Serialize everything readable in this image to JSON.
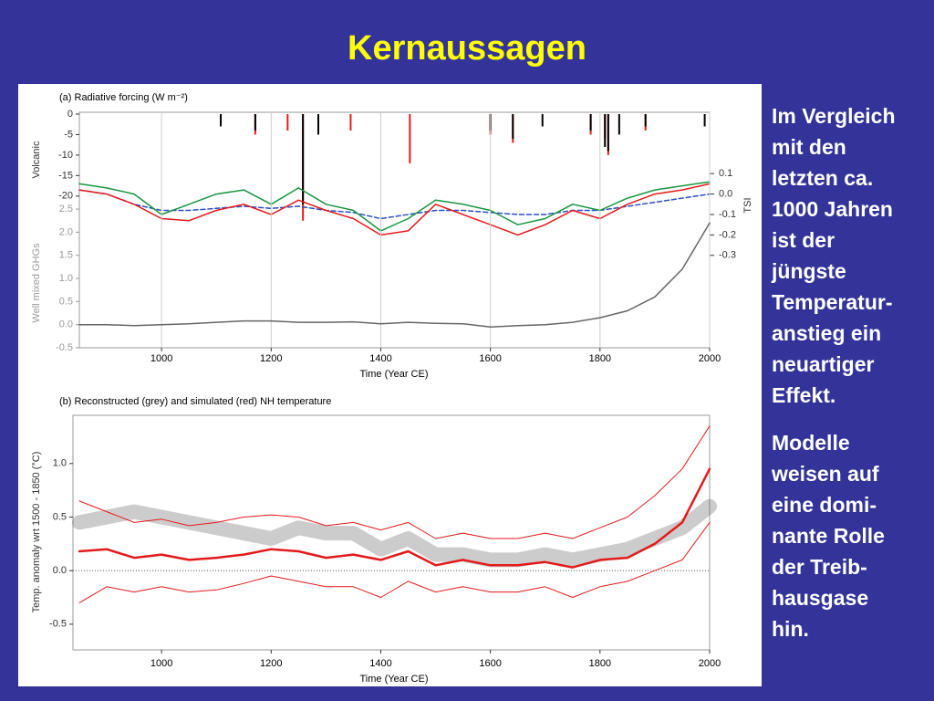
{
  "slide": {
    "title": "Kernaussagen",
    "paragraphs": [
      [
        "Im Vergleich",
        "mit den",
        "letzten ca.",
        "1000 Jahren",
        "ist der",
        "jüngste",
        "Temperatur-",
        "anstieg ein",
        "neuartiger",
        "Effekt."
      ],
      [
        "Modelle",
        "weisen auf",
        "eine domi-",
        "nante Rolle",
        "der Treib-",
        "hausgase",
        "hin."
      ]
    ]
  },
  "chart_data": [
    {
      "type": "bar",
      "title": "(a)  Radiative forcing (W m⁻²)",
      "ylabel": "Volcanic",
      "xlim": [
        850,
        2000
      ],
      "ylim": [
        -28.5,
        0
      ],
      "yticks": [
        0,
        -5,
        -10,
        -15,
        -20
      ],
      "x": [
        1108,
        1171,
        1230,
        1258,
        1286,
        1345,
        1453,
        1600,
        1641,
        1695,
        1783,
        1809,
        1815,
        1835,
        1883,
        1991
      ],
      "series": [
        {
          "color": "#e41a1c",
          "values": [
            null,
            -5,
            -4,
            -26,
            null,
            -4,
            -12,
            -5,
            -7,
            null,
            -5,
            -6,
            -10,
            null,
            -4,
            null
          ]
        },
        {
          "color": "#000000",
          "values": [
            -3,
            -4,
            null,
            -22,
            -5,
            null,
            null,
            -4,
            -6,
            -3,
            -4,
            -8,
            -9,
            -5,
            -3,
            -3
          ]
        }
      ]
    },
    {
      "type": "line",
      "ylabel": "TSI",
      "axis_side": "right",
      "xlim": [
        850,
        2000
      ],
      "ylim": [
        -0.35,
        0.15
      ],
      "yticks": [
        0.1,
        {
          "value": 0,
          "label": "0.0"
        },
        -0.1,
        -0.2,
        -0.3
      ],
      "x": [
        850,
        900,
        950,
        1000,
        1050,
        1100,
        1150,
        1200,
        1250,
        1300,
        1350,
        1400,
        1450,
        1500,
        1550,
        1600,
        1650,
        1700,
        1750,
        1800,
        1850,
        1900,
        1950,
        2000
      ],
      "series": [
        {
          "color": "#2b4fc4",
          "dashed": true,
          "values": [
            0.02,
            0,
            -0.05,
            -0.08,
            -0.08,
            -0.07,
            -0.06,
            -0.07,
            -0.06,
            -0.08,
            -0.09,
            -0.12,
            -0.1,
            -0.08,
            -0.08,
            -0.09,
            -0.1,
            -0.1,
            -0.08,
            -0.08,
            -0.06,
            -0.04,
            -0.02,
            0
          ]
        },
        {
          "color": "#1a9641",
          "values": [
            0.05,
            0.03,
            0,
            -0.1,
            -0.05,
            0,
            0.02,
            -0.05,
            0.03,
            -0.05,
            -0.08,
            -0.18,
            -0.12,
            -0.03,
            -0.05,
            -0.08,
            -0.15,
            -0.12,
            -0.05,
            -0.08,
            -0.02,
            0.02,
            0.04,
            0.06
          ]
        },
        {
          "color": "#e41a1c",
          "values": [
            0.02,
            0,
            -0.05,
            -0.12,
            -0.13,
            -0.08,
            -0.05,
            -0.1,
            -0.03,
            -0.08,
            -0.12,
            -0.2,
            -0.18,
            -0.05,
            -0.1,
            -0.15,
            -0.2,
            -0.15,
            -0.08,
            -0.12,
            -0.05,
            0,
            0.02,
            0.05
          ]
        }
      ]
    },
    {
      "type": "line",
      "ylabel": "Well mixed GHGs",
      "xlabel": "Time (Year CE)",
      "grid": true,
      "xlim": [
        850,
        2000
      ],
      "ylim": [
        -0.5,
        2.6
      ],
      "xticks": [
        1000,
        1200,
        1400,
        1600,
        1800,
        2000
      ],
      "yticks": [
        2.5,
        {
          "value": 2,
          "label": "2.0"
        },
        1.5,
        {
          "value": 1,
          "label": "1.0"
        },
        0.5,
        {
          "value": 0,
          "label": "0.0"
        },
        -0.5
      ],
      "x": [
        850,
        900,
        950,
        1000,
        1050,
        1100,
        1150,
        1200,
        1250,
        1300,
        1350,
        1400,
        1450,
        1500,
        1550,
        1600,
        1650,
        1700,
        1750,
        1800,
        1850,
        1900,
        1950,
        2000
      ],
      "series": [
        {
          "color": "#666666",
          "values": [
            0,
            0,
            -0.02,
            0,
            0.02,
            0.05,
            0.08,
            0.08,
            0.05,
            0.05,
            0.06,
            0.02,
            0.05,
            0.03,
            0.02,
            -0.05,
            -0.02,
            0,
            0.05,
            0.15,
            0.3,
            0.6,
            1.2,
            2.2
          ]
        }
      ]
    },
    {
      "type": "line",
      "title": "(b)  Reconstructed (grey) and simulated (red) NH temperature",
      "ylabel": "Temp. anomaly wrt 1500 - 1850 (°C)",
      "xlabel": "Time (Year CE)",
      "xlim": [
        850,
        2000
      ],
      "ylim": [
        -0.74,
        1.45
      ],
      "hline": 0,
      "xticks": [
        1000,
        1200,
        1400,
        1600,
        1800,
        2000
      ],
      "yticks": [
        -0.5,
        {
          "value": 0,
          "label": "0.0"
        },
        0.5,
        {
          "value": 1,
          "label": "1.0"
        }
      ],
      "x": [
        850,
        900,
        950,
        1000,
        1050,
        1100,
        1150,
        1200,
        1250,
        1300,
        1350,
        1400,
        1450,
        1500,
        1550,
        1600,
        1650,
        1700,
        1750,
        1800,
        1850,
        1900,
        1950,
        2000
      ],
      "series": [
        {
          "color": "#555555",
          "width": 16,
          "opacity": 0.3,
          "values": [
            0.45,
            0.5,
            0.55,
            0.5,
            0.45,
            0.4,
            0.35,
            0.3,
            0.4,
            0.35,
            0.35,
            0.2,
            0.3,
            0.15,
            0.15,
            0.1,
            0.1,
            0.15,
            0.1,
            0.15,
            0.2,
            0.3,
            0.4,
            0.6
          ]
        },
        {
          "color": "#e41a1c",
          "width": 1,
          "values": [
            0.65,
            0.55,
            0.45,
            0.48,
            0.42,
            0.45,
            0.5,
            0.52,
            0.5,
            0.42,
            0.45,
            0.38,
            0.45,
            0.3,
            0.35,
            0.3,
            0.3,
            0.35,
            0.3,
            0.4,
            0.5,
            0.7,
            0.95,
            1.35
          ]
        },
        {
          "color": "#e41a1c",
          "width": 1,
          "values": [
            -0.3,
            -0.15,
            -0.2,
            -0.15,
            -0.2,
            -0.18,
            -0.12,
            -0.05,
            -0.1,
            -0.15,
            -0.15,
            -0.25,
            -0.1,
            -0.2,
            -0.15,
            -0.2,
            -0.2,
            -0.15,
            -0.25,
            -0.15,
            -0.1,
            0,
            0.1,
            0.45
          ]
        },
        {
          "color": "#e41a1c",
          "width": 2.5,
          "values": [
            0.18,
            0.2,
            0.12,
            0.15,
            0.1,
            0.12,
            0.15,
            0.2,
            0.18,
            0.12,
            0.15,
            0.1,
            0.18,
            0.05,
            0.1,
            0.05,
            0.05,
            0.08,
            0.03,
            0.1,
            0.12,
            0.25,
            0.45,
            0.95
          ]
        }
      ]
    }
  ]
}
